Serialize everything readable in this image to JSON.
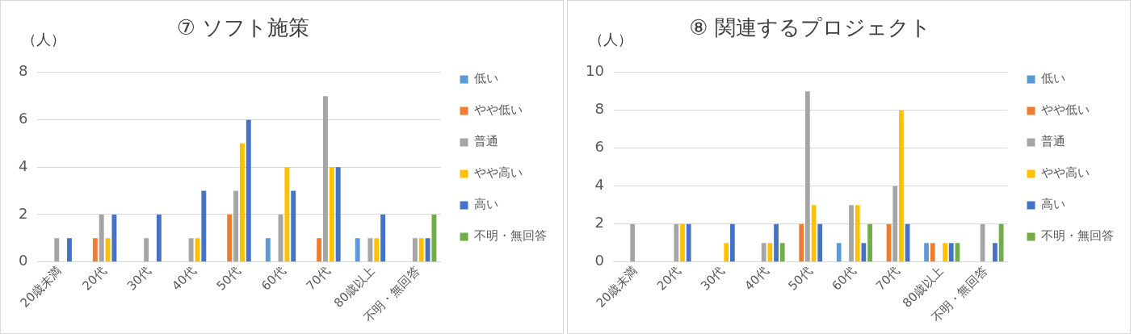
{
  "chart_data": [
    {
      "type": "bar",
      "title": "⑦ ソフト施策",
      "ylabel": "（人）",
      "categories": [
        "20歳未満",
        "20代",
        "30代",
        "40代",
        "50代",
        "60代",
        "70代",
        "80歳以上",
        "不明・無回答"
      ],
      "series": [
        {
          "name": "低い",
          "color": "#5b9bd5",
          "values": [
            null,
            null,
            null,
            null,
            null,
            1,
            null,
            1,
            null
          ]
        },
        {
          "name": "やや低い",
          "color": "#ed7d31",
          "values": [
            null,
            1,
            null,
            null,
            2,
            null,
            1,
            null,
            null
          ]
        },
        {
          "name": "普通",
          "color": "#a5a5a5",
          "values": [
            1,
            2,
            1,
            1,
            3,
            2,
            7,
            1,
            1
          ]
        },
        {
          "name": "やや高い",
          "color": "#ffc000",
          "values": [
            null,
            1,
            null,
            1,
            5,
            4,
            4,
            1,
            1
          ]
        },
        {
          "name": "高い",
          "color": "#4472c4",
          "values": [
            1,
            2,
            2,
            3,
            6,
            3,
            4,
            2,
            1
          ]
        },
        {
          "name": "不明・無回答",
          "color": "#70ad47",
          "values": [
            null,
            null,
            null,
            null,
            null,
            null,
            null,
            null,
            2
          ]
        }
      ],
      "ylim": [
        0,
        8
      ],
      "yticks": [
        0,
        2,
        4,
        6,
        8
      ],
      "grid": "y",
      "legend": "right"
    },
    {
      "type": "bar",
      "title": "⑧ 関連するプロジェクト",
      "ylabel": "（人）",
      "categories": [
        "20歳未満",
        "20代",
        "30代",
        "40代",
        "50代",
        "60代",
        "70代",
        "80歳以上",
        "不明・無回答"
      ],
      "series": [
        {
          "name": "低い",
          "color": "#5b9bd5",
          "values": [
            null,
            null,
            null,
            null,
            null,
            1,
            null,
            1,
            null
          ]
        },
        {
          "name": "やや低い",
          "color": "#ed7d31",
          "values": [
            null,
            null,
            null,
            null,
            2,
            null,
            2,
            1,
            null
          ]
        },
        {
          "name": "普通",
          "color": "#a5a5a5",
          "values": [
            2,
            2,
            null,
            1,
            9,
            3,
            4,
            null,
            2
          ]
        },
        {
          "name": "やや高い",
          "color": "#ffc000",
          "values": [
            null,
            2,
            1,
            1,
            3,
            3,
            8,
            1,
            null
          ]
        },
        {
          "name": "高い",
          "color": "#4472c4",
          "values": [
            null,
            2,
            2,
            2,
            2,
            1,
            2,
            1,
            1
          ]
        },
        {
          "name": "不明・無回答",
          "color": "#70ad47",
          "values": [
            null,
            null,
            null,
            1,
            null,
            2,
            null,
            1,
            2
          ]
        }
      ],
      "ylim": [
        0,
        10
      ],
      "yticks": [
        0,
        2,
        4,
        6,
        8,
        10
      ],
      "grid": "y",
      "legend": "right"
    }
  ]
}
